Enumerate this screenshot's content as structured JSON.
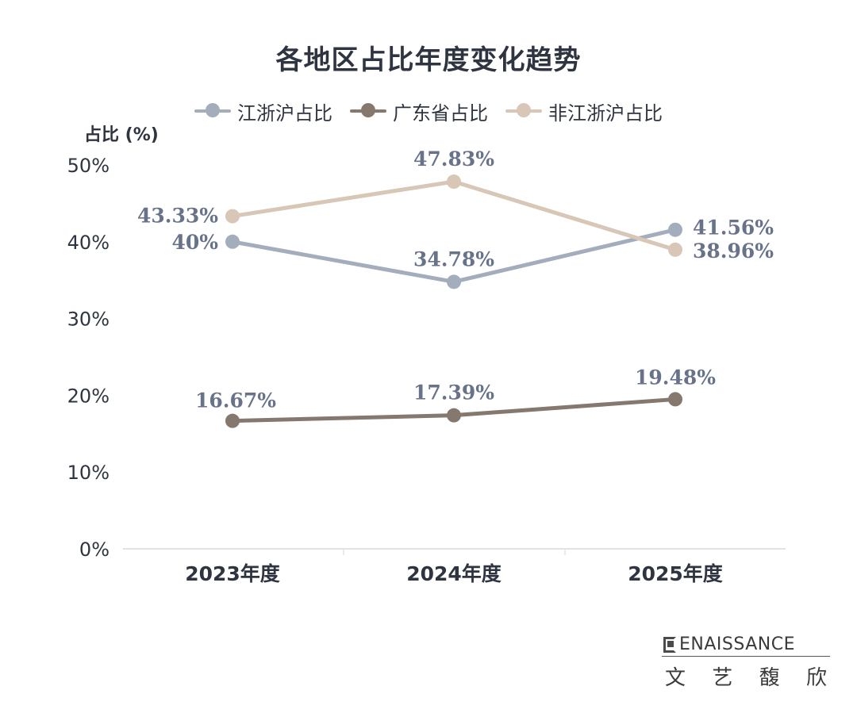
{
  "chart_data": {
    "type": "line",
    "title": "各地区占比年度变化趋势",
    "ylabel": "占比 (%)",
    "xlabel": "",
    "categories": [
      "2023年度",
      "2024年度",
      "2025年度"
    ],
    "ylim": [
      0,
      50
    ],
    "yticks": [
      "0%",
      "10%",
      "20%",
      "30%",
      "40%",
      "50%"
    ],
    "ytick_values": [
      0,
      10,
      20,
      30,
      40,
      50
    ],
    "grid": false,
    "legend_position": "top",
    "series": [
      {
        "name": "江浙沪占比",
        "color": "#a3adbb",
        "label_color": "#68738a",
        "values": [
          40,
          34.78,
          41.56
        ],
        "labels": [
          "40%",
          "34.78%",
          "41.56%"
        ]
      },
      {
        "name": "广东省占比",
        "color": "#85786e",
        "label_color": "#68738a",
        "values": [
          16.67,
          17.39,
          19.48
        ],
        "labels": [
          "16.67%",
          "17.39%",
          "19.48%"
        ]
      },
      {
        "name": "非江浙沪占比",
        "color": "#d8c6b7",
        "label_color": "#68738a",
        "values": [
          43.33,
          47.83,
          38.96
        ],
        "labels": [
          "43.33%",
          "47.83%",
          "38.96%"
        ]
      }
    ]
  },
  "brand": {
    "name_en": "ENAISSANCE",
    "name_cn": [
      "文",
      "艺",
      "馥",
      "欣"
    ]
  }
}
